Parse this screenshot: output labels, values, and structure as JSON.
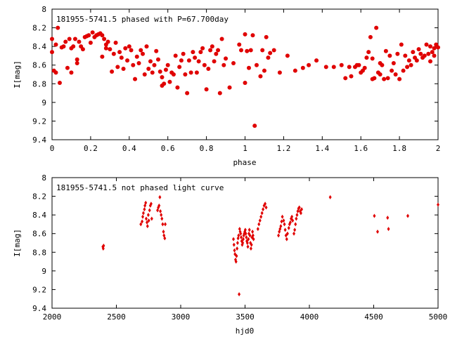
{
  "chart_data": [
    {
      "type": "scatter",
      "title": "181955-5741.5 phased with P=67.700day",
      "xlabel": "phase",
      "ylabel": "I[mag]",
      "xlim": [
        0,
        2
      ],
      "ylim": [
        8,
        9.4
      ],
      "y_inverted": true,
      "x_ticks": [
        0,
        0.2,
        0.4,
        0.6,
        0.8,
        1,
        1.2,
        1.4,
        1.6,
        1.8,
        2
      ],
      "x_tick_labels": [
        "0",
        "0.2",
        "0.4",
        "0.6",
        "0.8",
        "1",
        "1.2",
        "1.4",
        "1.6",
        "1.8",
        "2"
      ],
      "y_ticks": [
        8,
        8.2,
        8.4,
        8.6,
        8.8,
        9,
        9.2,
        9.4
      ],
      "y_tick_labels": [
        "8",
        "8.2",
        "8.4",
        "8.6",
        "8.8",
        "9",
        "9.2",
        "9.4"
      ],
      "marker": "filled-circle",
      "marker_color": "#e00000",
      "points": [
        [
          0.0,
          8.32
        ],
        [
          0.0,
          8.46
        ],
        [
          0.01,
          8.66
        ],
        [
          0.02,
          8.68
        ],
        [
          0.02,
          8.38
        ],
        [
          0.03,
          8.2
        ],
        [
          0.04,
          8.79
        ],
        [
          0.05,
          8.41
        ],
        [
          0.06,
          8.4
        ],
        [
          0.07,
          8.35
        ],
        [
          0.08,
          8.63
        ],
        [
          0.09,
          8.32
        ],
        [
          0.1,
          8.42
        ],
        [
          0.1,
          8.68
        ],
        [
          0.11,
          8.4
        ],
        [
          0.12,
          8.32
        ],
        [
          0.13,
          8.58
        ],
        [
          0.13,
          8.54
        ],
        [
          0.14,
          8.35
        ],
        [
          0.15,
          8.4
        ],
        [
          0.16,
          8.43
        ],
        [
          0.17,
          8.3
        ],
        [
          0.18,
          8.29
        ],
        [
          0.19,
          8.28
        ],
        [
          0.2,
          8.36
        ],
        [
          0.21,
          8.25
        ],
        [
          0.22,
          8.3
        ],
        [
          0.23,
          8.28
        ],
        [
          0.24,
          8.27
        ],
        [
          0.25,
          8.26
        ],
        [
          0.26,
          8.28
        ],
        [
          0.26,
          8.51
        ],
        [
          0.27,
          8.32
        ],
        [
          0.28,
          8.38
        ],
        [
          0.28,
          8.42
        ],
        [
          0.29,
          8.35
        ],
        [
          0.3,
          8.43
        ],
        [
          0.31,
          8.67
        ],
        [
          0.32,
          8.48
        ],
        [
          0.33,
          8.36
        ],
        [
          0.34,
          8.62
        ],
        [
          0.35,
          8.46
        ],
        [
          0.36,
          8.52
        ],
        [
          0.37,
          8.64
        ],
        [
          0.38,
          8.42
        ],
        [
          0.39,
          8.55
        ],
        [
          0.4,
          8.4
        ],
        [
          0.41,
          8.44
        ],
        [
          0.42,
          8.6
        ],
        [
          0.43,
          8.75
        ],
        [
          0.44,
          8.51
        ],
        [
          0.45,
          8.58
        ],
        [
          0.46,
          8.44
        ],
        [
          0.47,
          8.48
        ],
        [
          0.48,
          8.7
        ],
        [
          0.49,
          8.4
        ],
        [
          0.5,
          8.64
        ],
        [
          0.51,
          8.56
        ],
        [
          0.52,
          8.68
        ],
        [
          0.53,
          8.6
        ],
        [
          0.54,
          8.45
        ],
        [
          0.55,
          8.54
        ],
        [
          0.56,
          8.67
        ],
        [
          0.57,
          8.73
        ],
        [
          0.57,
          8.82
        ],
        [
          0.58,
          8.8
        ],
        [
          0.59,
          8.65
        ],
        [
          0.6,
          8.6
        ],
        [
          0.61,
          8.78
        ],
        [
          0.62,
          8.68
        ],
        [
          0.63,
          8.7
        ],
        [
          0.64,
          8.5
        ],
        [
          0.65,
          8.84
        ],
        [
          0.66,
          8.62
        ],
        [
          0.67,
          8.55
        ],
        [
          0.68,
          8.48
        ],
        [
          0.69,
          8.7
        ],
        [
          0.7,
          8.9
        ],
        [
          0.71,
          8.55
        ],
        [
          0.72,
          8.68
        ],
        [
          0.73,
          8.46
        ],
        [
          0.74,
          8.52
        ],
        [
          0.75,
          8.68
        ],
        [
          0.76,
          8.56
        ],
        [
          0.77,
          8.46
        ],
        [
          0.78,
          8.42
        ],
        [
          0.79,
          8.6
        ],
        [
          0.8,
          8.86
        ],
        [
          0.81,
          8.64
        ],
        [
          0.82,
          8.44
        ],
        [
          0.83,
          8.4
        ],
        [
          0.84,
          8.56
        ],
        [
          0.85,
          8.48
        ],
        [
          0.86,
          8.44
        ],
        [
          0.87,
          8.9
        ],
        [
          0.88,
          8.32
        ],
        [
          0.89,
          8.6
        ],
        [
          0.9,
          8.53
        ],
        [
          0.92,
          8.84
        ],
        [
          0.94,
          8.58
        ],
        [
          0.97,
          8.38
        ],
        [
          0.98,
          8.44
        ],
        [
          1.0,
          8.27
        ],
        [
          1.0,
          8.79
        ],
        [
          1.01,
          8.45
        ],
        [
          1.02,
          8.63
        ],
        [
          1.03,
          8.44
        ],
        [
          1.04,
          8.28
        ],
        [
          1.05,
          9.25
        ],
        [
          1.06,
          8.6
        ],
        [
          1.08,
          8.72
        ],
        [
          1.09,
          8.44
        ],
        [
          1.1,
          8.66
        ],
        [
          1.11,
          8.3
        ],
        [
          1.12,
          8.52
        ],
        [
          1.13,
          8.47
        ],
        [
          1.15,
          8.44
        ],
        [
          1.18,
          8.68
        ],
        [
          1.22,
          8.5
        ],
        [
          1.26,
          8.66
        ],
        [
          1.3,
          8.63
        ],
        [
          1.33,
          8.6
        ],
        [
          1.37,
          8.55
        ],
        [
          1.42,
          8.62
        ],
        [
          1.46,
          8.62
        ],
        [
          1.5,
          8.6
        ],
        [
          1.54,
          8.62
        ],
        [
          1.58,
          8.6
        ],
        [
          1.62,
          8.63
        ],
        [
          1.66,
          8.75
        ],
        [
          1.67,
          8.74
        ],
        [
          1.7,
          8.7
        ],
        [
          1.72,
          8.75
        ],
        [
          1.74,
          8.74
        ],
        [
          1.76,
          8.66
        ],
        [
          1.78,
          8.7
        ],
        [
          1.8,
          8.75
        ],
        [
          1.82,
          8.66
        ],
        [
          1.84,
          8.62
        ],
        [
          1.86,
          8.6
        ],
        [
          1.88,
          8.52
        ],
        [
          1.9,
          8.43
        ],
        [
          1.92,
          8.52
        ],
        [
          1.94,
          8.38
        ],
        [
          1.96,
          8.4
        ],
        [
          1.97,
          8.46
        ],
        [
          1.98,
          8.5
        ],
        [
          1.99,
          8.38
        ],
        [
          2.0,
          8.41
        ],
        [
          1.52,
          8.74
        ],
        [
          1.55,
          8.72
        ],
        [
          1.57,
          8.62
        ],
        [
          1.59,
          8.6
        ],
        [
          1.6,
          8.68
        ],
        [
          1.61,
          8.66
        ],
        [
          1.63,
          8.52
        ],
        [
          1.64,
          8.46
        ],
        [
          1.65,
          8.3
        ],
        [
          1.66,
          8.53
        ],
        [
          1.68,
          8.2
        ],
        [
          1.69,
          8.68
        ],
        [
          1.7,
          8.58
        ],
        [
          1.71,
          8.6
        ],
        [
          1.73,
          8.45
        ],
        [
          1.75,
          8.5
        ],
        [
          1.77,
          8.58
        ],
        [
          1.79,
          8.48
        ],
        [
          1.81,
          8.38
        ],
        [
          1.83,
          8.5
        ],
        [
          1.85,
          8.55
        ],
        [
          1.87,
          8.46
        ],
        [
          1.89,
          8.55
        ],
        [
          1.91,
          8.48
        ],
        [
          1.93,
          8.5
        ],
        [
          1.95,
          8.48
        ],
        [
          1.96,
          8.56
        ],
        [
          1.98,
          8.42
        ]
      ]
    },
    {
      "type": "scatter",
      "title": "181955-5741.5 not phased light curve",
      "xlabel": "hjd0",
      "ylabel": "I[mag]",
      "xlim": [
        2000,
        5000
      ],
      "ylim": [
        8,
        9.4
      ],
      "y_inverted": true,
      "x_ticks": [
        2000,
        2500,
        3000,
        3500,
        4000,
        4500,
        5000
      ],
      "x_tick_labels": [
        "2000",
        "2500",
        "3000",
        "3500",
        "4000",
        "4500",
        "5000"
      ],
      "y_ticks": [
        8,
        8.2,
        8.4,
        8.6,
        8.8,
        9,
        9.2,
        9.4
      ],
      "y_tick_labels": [
        "8",
        "8.2",
        "8.4",
        "8.6",
        "8.8",
        "9",
        "9.2",
        "9.4"
      ],
      "marker": "small-diamond",
      "marker_color": "#e00000",
      "points": [
        [
          2395,
          8.74
        ],
        [
          2398,
          8.76
        ],
        [
          2401,
          8.73
        ],
        [
          2690,
          8.5
        ],
        [
          2700,
          8.47
        ],
        [
          2705,
          8.42
        ],
        [
          2710,
          8.38
        ],
        [
          2718,
          8.34
        ],
        [
          2722,
          8.3
        ],
        [
          2728,
          8.27
        ],
        [
          2732,
          8.44
        ],
        [
          2738,
          8.48
        ],
        [
          2742,
          8.52
        ],
        [
          2748,
          8.4
        ],
        [
          2752,
          8.46
        ],
        [
          2758,
          8.35
        ],
        [
          2764,
          8.3
        ],
        [
          2770,
          8.28
        ],
        [
          2775,
          8.44
        ],
        [
          2820,
          8.35
        ],
        [
          2826,
          8.32
        ],
        [
          2832,
          8.3
        ],
        [
          2838,
          8.21
        ],
        [
          2842,
          8.36
        ],
        [
          2848,
          8.4
        ],
        [
          2854,
          8.44
        ],
        [
          2860,
          8.5
        ],
        [
          2866,
          8.58
        ],
        [
          2870,
          8.62
        ],
        [
          2876,
          8.65
        ],
        [
          2880,
          8.5
        ],
        [
          3410,
          8.66
        ],
        [
          3414,
          8.72
        ],
        [
          3418,
          8.78
        ],
        [
          3422,
          8.82
        ],
        [
          3426,
          8.88
        ],
        [
          3430,
          8.9
        ],
        [
          3434,
          8.84
        ],
        [
          3438,
          8.76
        ],
        [
          3442,
          8.7
        ],
        [
          3446,
          8.65
        ],
        [
          3450,
          8.62
        ],
        [
          3454,
          9.25
        ],
        [
          3458,
          8.55
        ],
        [
          3462,
          8.58
        ],
        [
          3466,
          8.6
        ],
        [
          3470,
          8.64
        ],
        [
          3474,
          8.68
        ],
        [
          3478,
          8.72
        ],
        [
          3482,
          8.7
        ],
        [
          3486,
          8.66
        ],
        [
          3490,
          8.62
        ],
        [
          3494,
          8.6
        ],
        [
          3498,
          8.58
        ],
        [
          3502,
          8.56
        ],
        [
          3506,
          8.6
        ],
        [
          3510,
          8.64
        ],
        [
          3514,
          8.68
        ],
        [
          3518,
          8.7
        ],
        [
          3522,
          8.74
        ],
        [
          3526,
          8.66
        ],
        [
          3530,
          8.6
        ],
        [
          3534,
          8.56
        ],
        [
          3538,
          8.62
        ],
        [
          3542,
          8.7
        ],
        [
          3546,
          8.76
        ],
        [
          3550,
          8.72
        ],
        [
          3554,
          8.64
        ],
        [
          3558,
          8.58
        ],
        [
          3562,
          8.62
        ],
        [
          3566,
          8.66
        ],
        [
          3600,
          8.55
        ],
        [
          3608,
          8.5
        ],
        [
          3616,
          8.46
        ],
        [
          3624,
          8.42
        ],
        [
          3632,
          8.38
        ],
        [
          3640,
          8.34
        ],
        [
          3648,
          8.3
        ],
        [
          3656,
          8.28
        ],
        [
          3664,
          8.32
        ],
        [
          3760,
          8.62
        ],
        [
          3766,
          8.58
        ],
        [
          3772,
          8.55
        ],
        [
          3778,
          8.52
        ],
        [
          3784,
          8.47
        ],
        [
          3790,
          8.42
        ],
        [
          3800,
          8.46
        ],
        [
          3806,
          8.5
        ],
        [
          3812,
          8.56
        ],
        [
          3818,
          8.62
        ],
        [
          3824,
          8.66
        ],
        [
          3830,
          8.6
        ],
        [
          3840,
          8.54
        ],
        [
          3846,
          8.5
        ],
        [
          3852,
          8.48
        ],
        [
          3858,
          8.44
        ],
        [
          3864,
          8.42
        ],
        [
          3870,
          8.46
        ],
        [
          3880,
          8.6
        ],
        [
          3886,
          8.56
        ],
        [
          3892,
          8.5
        ],
        [
          3898,
          8.44
        ],
        [
          3904,
          8.4
        ],
        [
          3910,
          8.36
        ],
        [
          3916,
          8.33
        ],
        [
          3922,
          8.32
        ],
        [
          3928,
          8.36
        ],
        [
          3934,
          8.38
        ],
        [
          3940,
          8.34
        ],
        [
          4162,
          8.21
        ],
        [
          4505,
          8.41
        ],
        [
          4530,
          8.58
        ],
        [
          4608,
          8.43
        ],
        [
          4615,
          8.55
        ],
        [
          4765,
          8.41
        ],
        [
          5000,
          8.29
        ]
      ]
    }
  ]
}
